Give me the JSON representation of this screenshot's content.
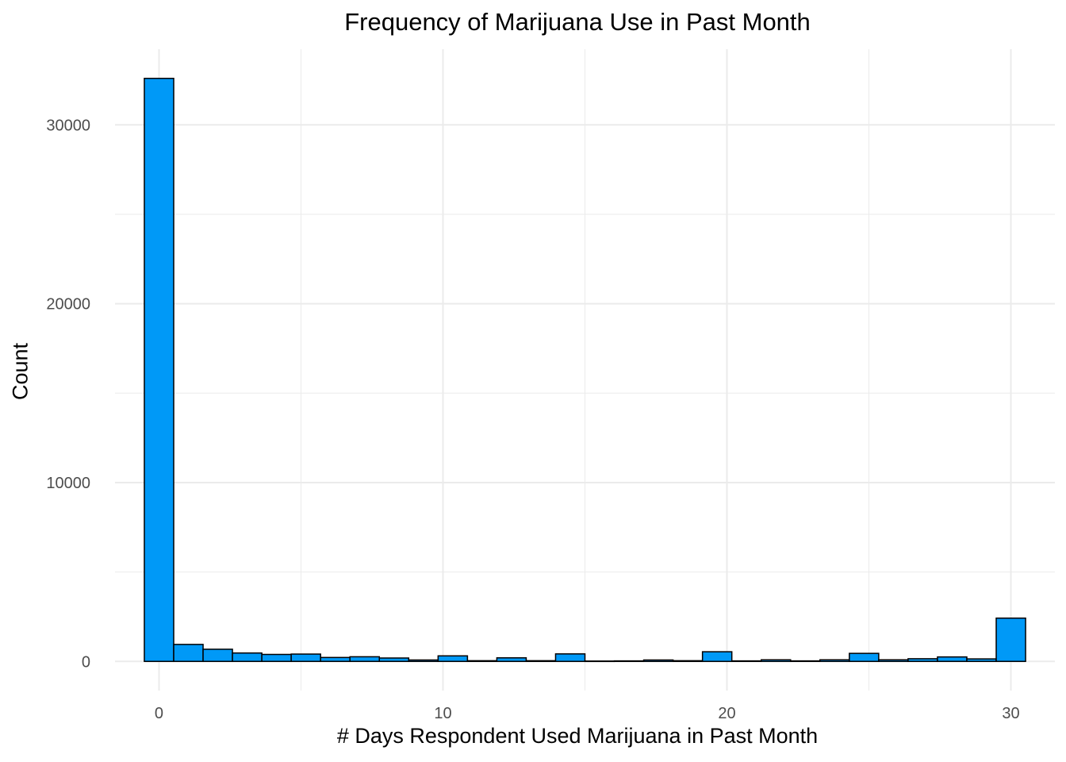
{
  "chart_data": {
    "type": "bar",
    "title": "Frequency of Marijuana Use in Past Month",
    "xlabel": "# Days Respondent Used Marijuana in Past Month",
    "ylabel": "Count",
    "bin_width": 1.0345,
    "bin_start": -0.5172,
    "bins": [
      {
        "x": 0,
        "count": 32600
      },
      {
        "x": 1,
        "count": 950
      },
      {
        "x": 2,
        "count": 680
      },
      {
        "x": 3,
        "count": 470
      },
      {
        "x": 4,
        "count": 390
      },
      {
        "x": 5,
        "count": 410
      },
      {
        "x": 6,
        "count": 220
      },
      {
        "x": 7,
        "count": 260
      },
      {
        "x": 8,
        "count": 190
      },
      {
        "x": 9,
        "count": 80
      },
      {
        "x": 10,
        "count": 310
      },
      {
        "x": 11,
        "count": 40
      },
      {
        "x": 12,
        "count": 200
      },
      {
        "x": 13,
        "count": 40
      },
      {
        "x": 14,
        "count": 420
      },
      {
        "x": 15,
        "count": 20
      },
      {
        "x": 16,
        "count": 30
      },
      {
        "x": 17,
        "count": 80
      },
      {
        "x": 18,
        "count": 40
      },
      {
        "x": 19,
        "count": 540
      },
      {
        "x": 20,
        "count": 30
      },
      {
        "x": 21,
        "count": 90
      },
      {
        "x": 22,
        "count": 30
      },
      {
        "x": 23,
        "count": 90
      },
      {
        "x": 24,
        "count": 450
      },
      {
        "x": 25,
        "count": 90
      },
      {
        "x": 26,
        "count": 150
      },
      {
        "x": 27,
        "count": 250
      },
      {
        "x": 28,
        "count": 140
      },
      {
        "x": 29,
        "count": 2420
      }
    ],
    "xlim": [
      -1.55,
      31.55
    ],
    "ylim": [
      -1630,
      34230
    ],
    "x_ticks": [
      0,
      10,
      20,
      30
    ],
    "y_ticks": [
      0,
      10000,
      20000,
      30000
    ],
    "grid": true,
    "fill_color": "#0099f7",
    "edge_color": "#000000",
    "grid_color": "#ebebeb"
  }
}
